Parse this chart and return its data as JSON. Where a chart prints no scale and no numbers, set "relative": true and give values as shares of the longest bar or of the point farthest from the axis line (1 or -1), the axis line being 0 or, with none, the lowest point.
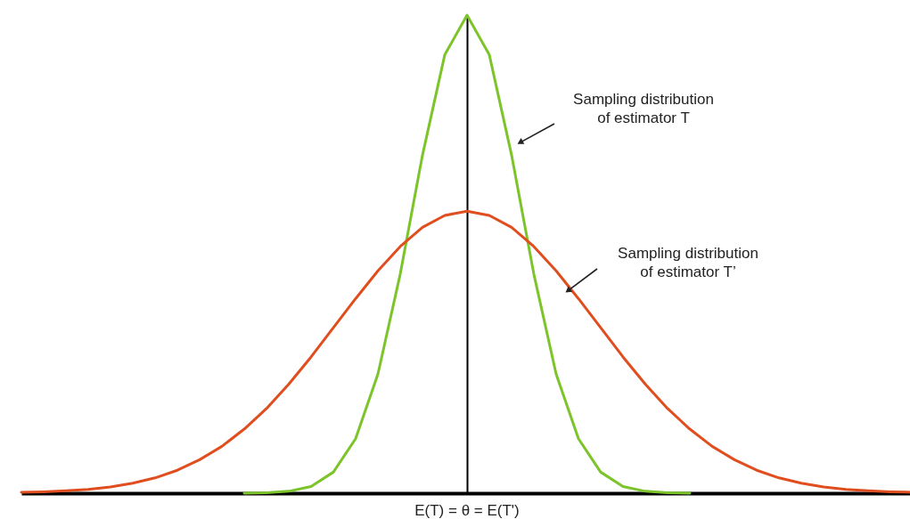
{
  "chart_data": {
    "type": "line",
    "relative": true,
    "categories": [
      null,
      null,
      null,
      null,
      null,
      null,
      null,
      null,
      null,
      null,
      null,
      null,
      null,
      null,
      null,
      null,
      null,
      null,
      null,
      null,
      null,
      null,
      null,
      null,
      null,
      null,
      null,
      null,
      null,
      null,
      null,
      null,
      null,
      null,
      null,
      null,
      null,
      null,
      null,
      null,
      null
    ],
    "series": [
      {
        "color": "#7cc42a",
        "values": [
          null,
          null,
          null,
          null,
          null,
          null,
          null,
          null,
          null,
          null,
          0.0,
          0.001,
          0.004,
          0.014,
          0.044,
          0.114,
          0.249,
          0.458,
          0.707,
          0.917,
          1,
          0.917,
          0.707,
          0.458,
          0.249,
          0.114,
          0.044,
          0.014,
          0.004,
          0.001,
          0.0,
          null,
          null,
          null,
          null,
          null,
          null,
          null,
          null,
          null,
          null
        ]
      },
      {
        "color": "#e04e1f",
        "values": [
          0.002,
          0.003,
          0.005,
          0.008,
          0.013,
          0.021,
          0.032,
          0.048,
          0.07,
          0.098,
          0.134,
          0.177,
          0.228,
          0.285,
          0.346,
          0.407,
          0.465,
          0.516,
          0.556,
          0.581,
          0.59,
          0.581,
          0.556,
          0.516,
          0.465,
          0.407,
          0.346,
          0.285,
          0.228,
          0.177,
          0.134,
          0.098,
          0.07,
          0.048,
          0.032,
          0.021,
          0.013,
          0.008,
          0.005,
          0.003,
          0.002
        ]
      }
    ],
    "annotations": [
      "Sampling distribution\nof estimator T",
      "Sampling distribution\nof estimator T’",
      "E(T) = θ = E(T')"
    ]
  }
}
